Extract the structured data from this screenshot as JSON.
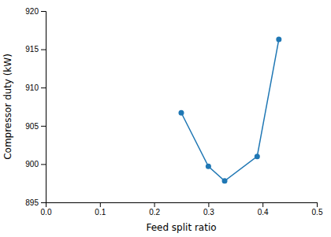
{
  "chart_data": {
    "type": "line",
    "x": [
      0.25,
      0.3,
      0.33,
      0.39,
      0.43
    ],
    "values": [
      906.7,
      899.7,
      897.8,
      901.0,
      916.3
    ],
    "xlabel": "Feed split ratio",
    "ylabel": "Compressor duty (kW)",
    "xlim": [
      0.0,
      0.5
    ],
    "ylim": [
      895,
      920
    ],
    "xticks": [
      {
        "value": 0.0,
        "label": "0.0"
      },
      0.1,
      0.2,
      0.3,
      0.4,
      0.5
    ],
    "yticks": [
      895,
      900,
      905,
      910,
      915,
      920
    ],
    "marker": "circle",
    "grid": false
  }
}
